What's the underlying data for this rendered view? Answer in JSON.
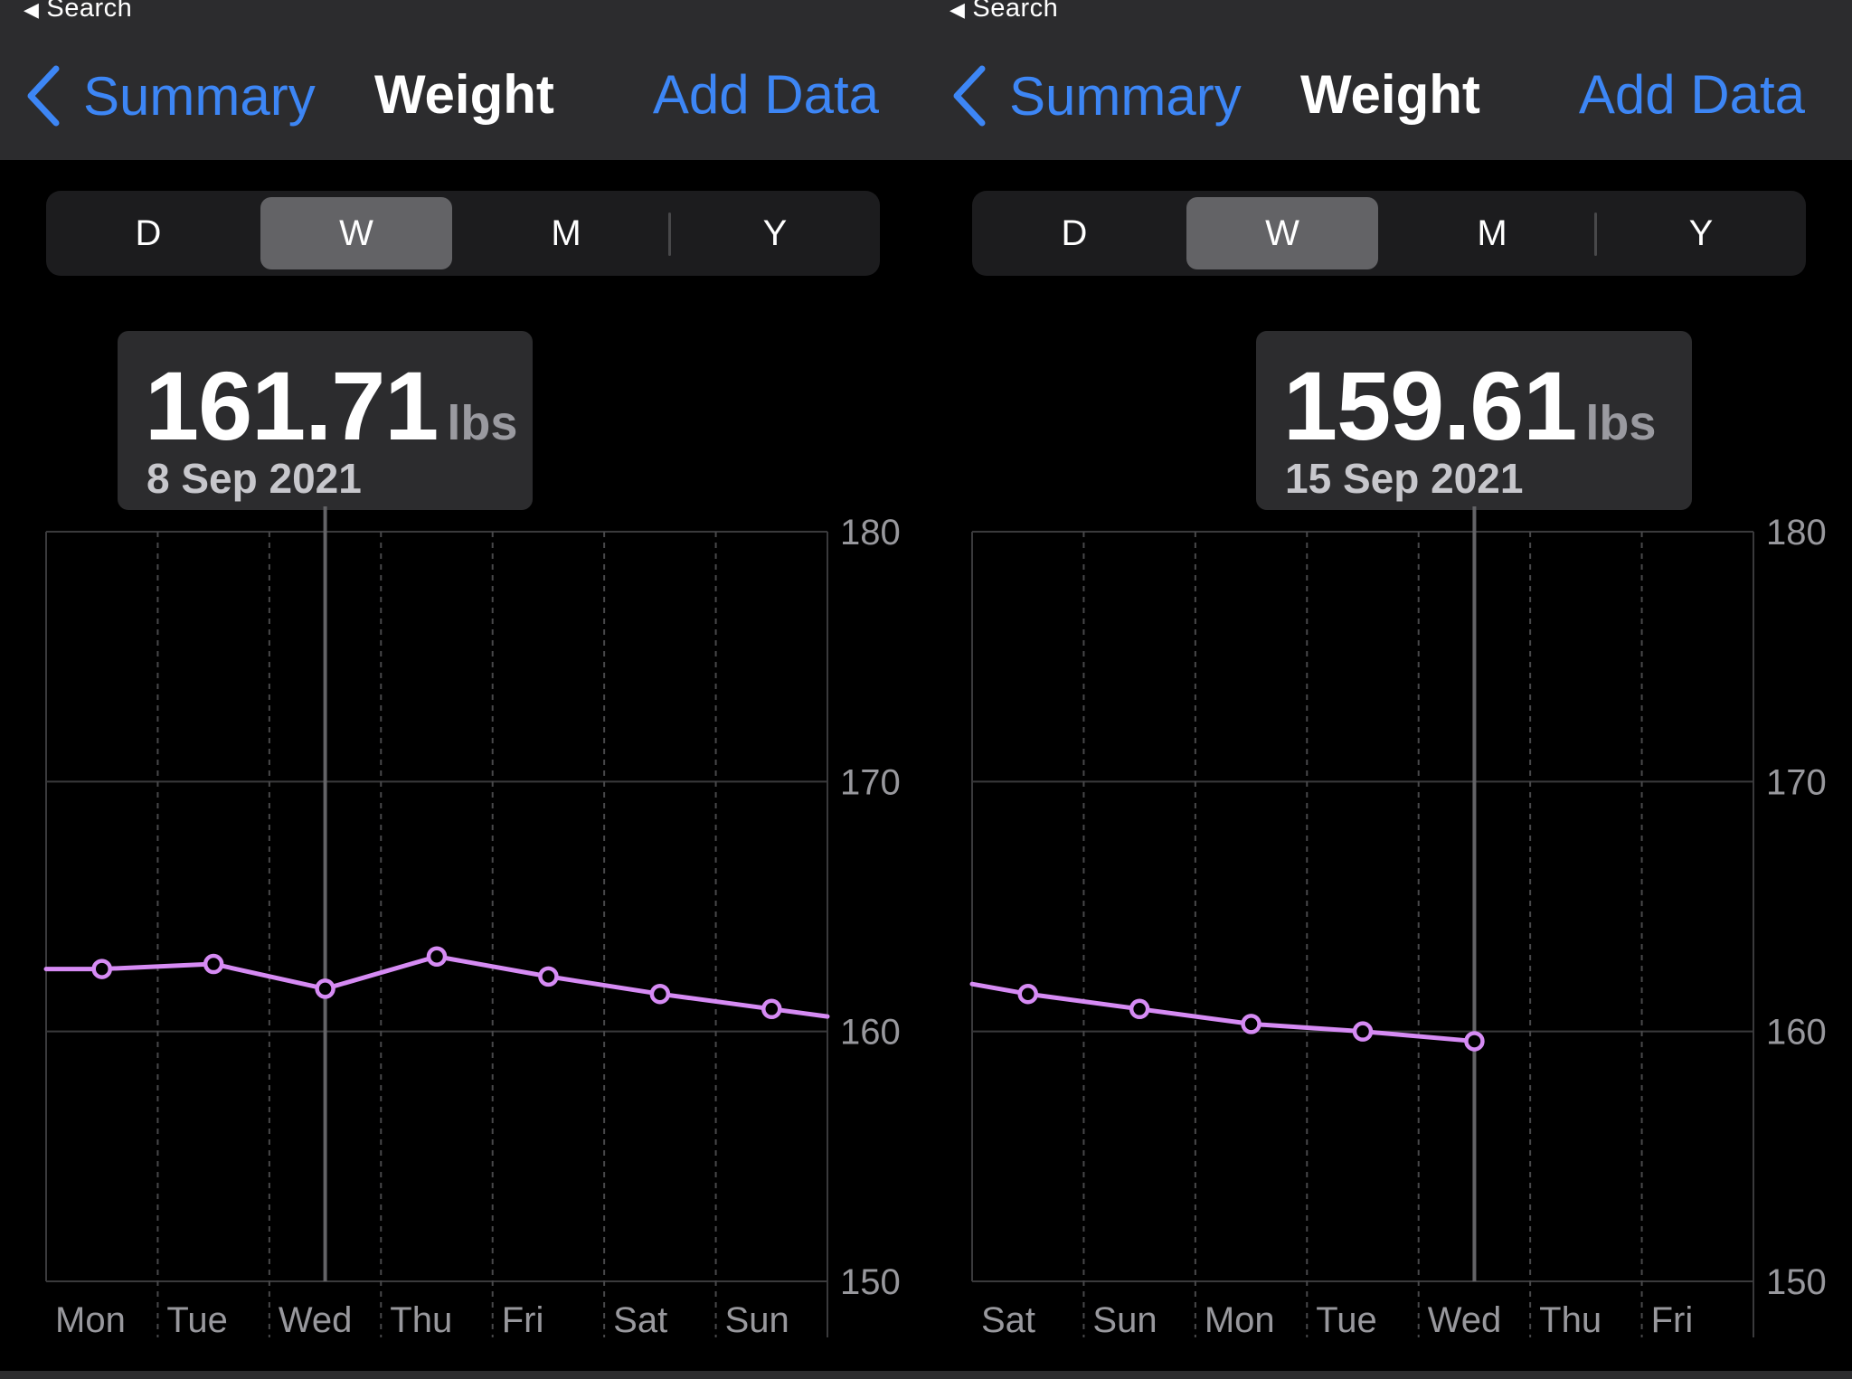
{
  "panels": [
    {
      "status": {
        "back_label": "Search"
      },
      "nav": {
        "back_label": "Summary",
        "title": "Weight",
        "action_label": "Add Data"
      },
      "segments": [
        "D",
        "W",
        "M",
        "Y"
      ],
      "selected_segment": "W",
      "callout": {
        "value": "161.71",
        "unit": "lbs",
        "date": "8 Sep 2021"
      },
      "chart_data": {
        "type": "line",
        "y_ticks": [
          "180",
          "170",
          "160",
          "150"
        ],
        "ylim": [
          150,
          180
        ],
        "x_ticks": [
          "Mon",
          "Tue",
          "Wed",
          "Thu",
          "Fri",
          "Sat",
          "Sun"
        ],
        "series": [
          {
            "color": "#d68bf4",
            "x": [
              -0.5,
              0,
              1,
              2,
              3,
              4,
              5,
              6,
              6.5
            ],
            "values": [
              162.5,
              162.5,
              162.7,
              161.71,
              163.0,
              162.2,
              161.5,
              160.9,
              160.6
            ],
            "markers": [
              false,
              true,
              true,
              true,
              true,
              true,
              true,
              true,
              false
            ]
          }
        ],
        "selected_index": 2,
        "grid": true
      }
    },
    {
      "status": {
        "back_label": "Search"
      },
      "nav": {
        "back_label": "Summary",
        "title": "Weight",
        "action_label": "Add Data"
      },
      "segments": [
        "D",
        "W",
        "M",
        "Y"
      ],
      "selected_segment": "W",
      "callout": {
        "value": "159.61",
        "unit": "lbs",
        "date": "15 Sep 2021"
      },
      "chart_data": {
        "type": "line",
        "y_ticks": [
          "180",
          "170",
          "160",
          "150"
        ],
        "ylim": [
          150,
          180
        ],
        "x_ticks": [
          "Sat",
          "Sun",
          "Mon",
          "Tue",
          "Wed",
          "Thu",
          "Fri"
        ],
        "series": [
          {
            "color": "#d68bf4",
            "x": [
              -0.5,
              0,
              1,
              2,
              3,
              4
            ],
            "values": [
              161.9,
              161.5,
              160.9,
              160.3,
              160.0,
              159.61
            ],
            "markers": [
              false,
              true,
              true,
              true,
              true,
              true
            ]
          }
        ],
        "selected_index": 4,
        "grid": true
      }
    }
  ]
}
